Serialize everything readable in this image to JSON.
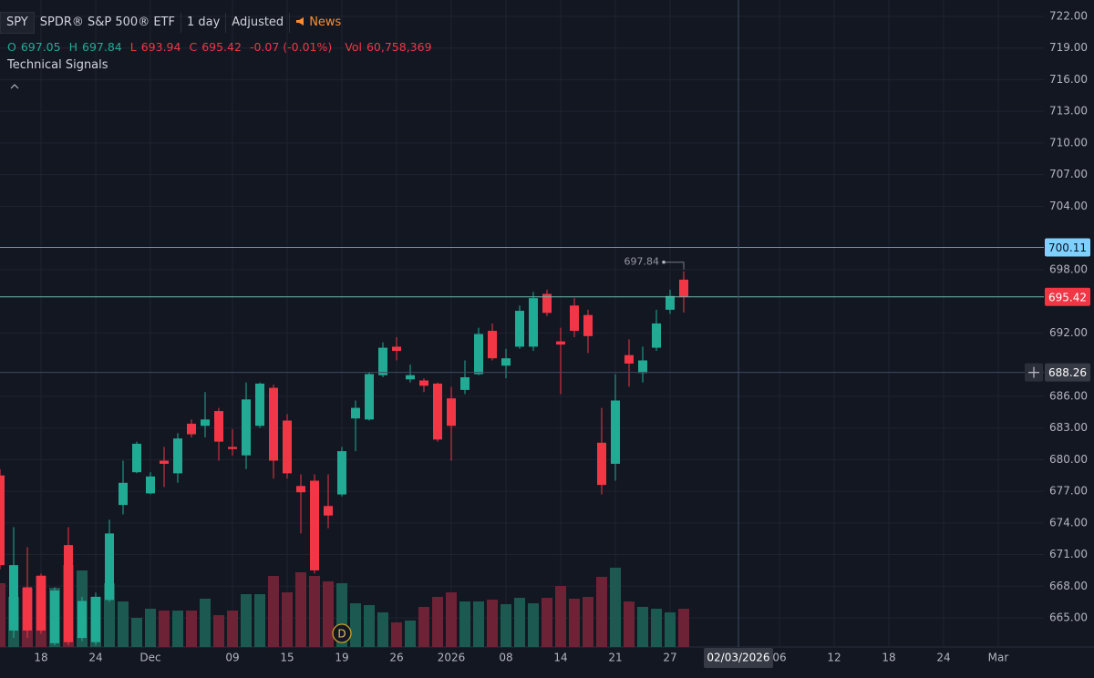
{
  "header": {
    "symbol": "SPY",
    "name": "SPDR® S&P 500® ETF",
    "interval": "1 day",
    "adjustment": "Adjusted",
    "news": "News",
    "ohlc": [
      {
        "label": "O",
        "value": "697.05"
      },
      {
        "label": "H",
        "value": "697.84"
      },
      {
        "label": "L",
        "value": "693.94"
      },
      {
        "label": "C",
        "value": "695.42"
      }
    ],
    "change": "-0.07 (-0.01%)",
    "volume_label": "Vol",
    "volume": "60,758,369",
    "signals": "Technical Signals"
  },
  "chart_data": {
    "type": "candlestick",
    "categories": [
      null,
      null,
      null,
      "18",
      null,
      null,
      null,
      "24",
      null,
      null,
      null,
      "Dec",
      null,
      null,
      null,
      null,
      null,
      "09",
      null,
      null,
      null,
      "15",
      null,
      null,
      null,
      "19",
      null,
      null,
      null,
      "26",
      null,
      null,
      null,
      "2026",
      null,
      null,
      null,
      "08",
      null,
      null,
      null,
      "14",
      null,
      null,
      null,
      "21",
      null,
      null,
      null,
      "27",
      null,
      null,
      null,
      null,
      "02/03/2026",
      null,
      null,
      "06",
      null,
      null,
      null,
      "12",
      null,
      null,
      null,
      "18",
      null,
      null,
      null,
      "24",
      null,
      null,
      null,
      "Mar",
      null,
      null,
      null
    ],
    "open": [
      678.5,
      663.8,
      667.9,
      669.0,
      662.6,
      671.9,
      663.1,
      662.7,
      666.7,
      675.7,
      678.8,
      676.8,
      679.9,
      678.7,
      683.4,
      683.2,
      684.6,
      681.2,
      680.4,
      683.2,
      686.8,
      683.7,
      677.5,
      678.0,
      675.6,
      676.7,
      683.9,
      683.8,
      688.0,
      690.7,
      687.6,
      687.5,
      687.2,
      685.8,
      686.6,
      688.1,
      692.2,
      688.9,
      690.7,
      690.7,
      695.7,
      691.2,
      694.6,
      693.7,
      681.6,
      679.6,
      689.9,
      688.2,
      690.6,
      694.2,
      697.05,
      null,
      null,
      null,
      null,
      null,
      null,
      null,
      null,
      null,
      null,
      null,
      null,
      null,
      null,
      null,
      null,
      null,
      null,
      null,
      null,
      null,
      null,
      null,
      null,
      null,
      null
    ],
    "high": [
      679.1,
      673.6,
      671.7,
      669.2,
      667.9,
      673.6,
      667.0,
      667.4,
      674.3,
      679.9,
      681.7,
      678.8,
      681.2,
      682.5,
      683.8,
      686.4,
      684.9,
      682.9,
      687.3,
      687.3,
      687.1,
      684.3,
      678.6,
      678.6,
      678.6,
      681.2,
      685.6,
      688.3,
      691.1,
      691.6,
      689.0,
      687.7,
      687.3,
      686.9,
      689.4,
      692.5,
      692.9,
      690.5,
      694.6,
      695.9,
      696.1,
      692.5,
      695.3,
      694.2,
      684.9,
      688.1,
      691.4,
      690.7,
      694.2,
      696.1,
      697.84,
      null,
      null,
      null,
      null,
      null,
      null,
      null,
      null,
      null,
      null,
      null,
      null,
      null,
      null,
      null,
      null,
      null,
      null,
      null,
      null,
      null,
      null,
      null,
      null,
      null,
      null
    ],
    "low": [
      669.6,
      663.1,
      663.1,
      663.5,
      662.4,
      662.4,
      662.8,
      662.4,
      666.5,
      674.8,
      678.7,
      676.7,
      677.4,
      677.8,
      682.1,
      682.1,
      679.9,
      680.4,
      679.1,
      683.0,
      678.2,
      678.2,
      673.0,
      669.2,
      673.5,
      676.5,
      680.8,
      683.7,
      687.8,
      689.4,
      687.3,
      686.4,
      681.7,
      679.9,
      686.2,
      688.0,
      689.4,
      687.7,
      690.5,
      690.3,
      693.6,
      686.2,
      691.6,
      690.1,
      676.7,
      678.0,
      686.9,
      687.3,
      690.3,
      693.8,
      693.94,
      null,
      null,
      null,
      null,
      null,
      null,
      null,
      null,
      null,
      null,
      null,
      null,
      null,
      null,
      null,
      null,
      null,
      null,
      null,
      null,
      null,
      null,
      null,
      null,
      null,
      null
    ],
    "close": [
      670.0,
      670.0,
      663.8,
      663.8,
      667.6,
      662.7,
      666.6,
      667.0,
      673.0,
      677.8,
      681.5,
      678.4,
      679.6,
      682.0,
      682.4,
      683.8,
      681.7,
      681.0,
      685.7,
      687.2,
      679.9,
      678.7,
      676.9,
      669.5,
      674.7,
      680.8,
      684.9,
      688.1,
      690.6,
      690.3,
      688.0,
      687.0,
      681.9,
      683.2,
      687.8,
      691.9,
      689.6,
      689.6,
      694.1,
      695.3,
      693.9,
      690.9,
      692.2,
      691.7,
      677.6,
      685.6,
      689.1,
      689.4,
      692.9,
      695.5,
      695.42,
      null,
      null,
      null,
      null,
      null,
      null,
      null,
      null,
      null,
      null,
      null,
      null,
      null,
      null,
      null,
      null,
      null,
      null,
      null,
      null,
      null,
      null,
      null,
      null,
      null,
      null
    ],
    "volume": [
      101300000,
      79600000,
      94000000,
      112800000,
      94000000,
      130200000,
      121500000,
      79600000,
      101300000,
      72300000,
      46300000,
      60800000,
      57900000,
      57900000,
      57900000,
      76700000,
      50600000,
      57900000,
      83900000,
      83900000,
      112800000,
      86800000,
      118600000,
      112800000,
      104200000,
      101300000,
      69400000,
      66500000,
      55000000,
      39100000,
      42000000,
      63700000,
      79600000,
      86800000,
      72300000,
      72300000,
      75200000,
      68000000,
      78100000,
      69400000,
      78100000,
      96900000,
      76700000,
      79600000,
      111400000,
      125900000,
      72300000,
      63700000,
      60800000,
      55000000,
      60758369,
      null,
      null,
      null,
      null,
      null,
      null,
      null,
      null,
      null,
      null,
      null,
      null,
      null,
      null,
      null,
      null,
      null,
      null,
      null,
      null,
      null,
      null,
      null,
      null,
      null,
      null
    ],
    "up_color": "#22ab94",
    "down_color": "#f23645",
    "volume_up_color": "#1c5a51",
    "volume_down_color": "#6e2235",
    "ylim": [
      662.24,
      723.55
    ],
    "volume_lim": [
      0,
      1027000000
    ],
    "yticks": [
      {
        "value": 722,
        "label": "722.00"
      },
      {
        "value": 719,
        "label": "719.00"
      },
      {
        "value": 716,
        "label": "716.00"
      },
      {
        "value": 713,
        "label": "713.00"
      },
      {
        "value": 710,
        "label": "710.00"
      },
      {
        "value": 707,
        "label": "707.00"
      },
      {
        "value": 704,
        "label": "704.00"
      },
      {
        "value": 698,
        "label": "698.00"
      },
      {
        "value": 692,
        "label": "692.00"
      },
      {
        "value": 686,
        "label": "686.00"
      },
      {
        "value": 683,
        "label": "683.00"
      },
      {
        "value": 680,
        "label": "680.00"
      },
      {
        "value": 677,
        "label": "677.00"
      },
      {
        "value": 674,
        "label": "674.00"
      },
      {
        "value": 671,
        "label": "671.00"
      },
      {
        "value": 668,
        "label": "668.00"
      },
      {
        "value": 665,
        "label": "665.00"
      }
    ],
    "grid": true,
    "price_lines": [
      {
        "value": 700.11,
        "box": "#7fd0ff",
        "text": "#0b1220",
        "line": "#6f93b8"
      },
      {
        "value": 695.42,
        "box": "#f23645",
        "text": "#ffffff",
        "line": "#6fb7aa"
      }
    ],
    "crosshair": {
      "x": "02/03/2026",
      "y": 688.26
    },
    "event_label": "D"
  }
}
